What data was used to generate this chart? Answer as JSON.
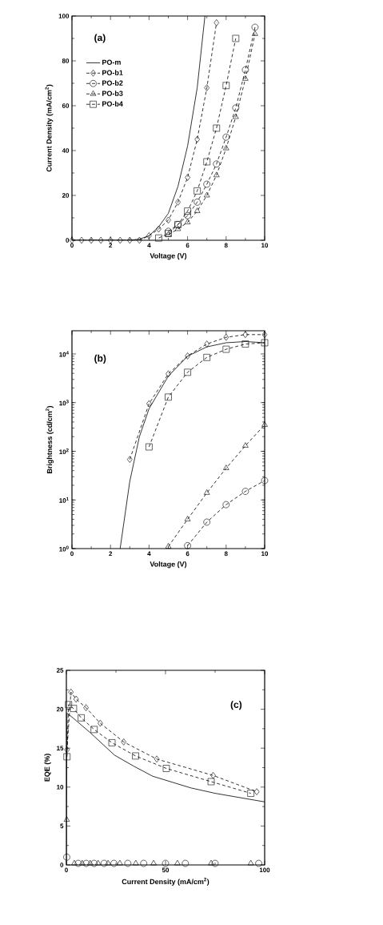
{
  "chart_data": [
    {
      "type": "line",
      "annotations": [
        "(a)"
      ],
      "xlabel": "Voltage (V)",
      "ylabel": "Current Density (mA/cm$^{2}$)",
      "xlim": [
        0,
        10
      ],
      "ylim": [
        0,
        100
      ],
      "xticks": [
        0,
        2,
        4,
        6,
        8,
        10
      ],
      "yticks": [
        0,
        20,
        40,
        60,
        80,
        100
      ],
      "legend": "top left",
      "series": [
        {
          "name": "PO-m",
          "color": "#000000",
          "marker": "none",
          "line_style": "solid",
          "x": [
            0,
            1,
            2,
            3,
            3.5,
            4,
            4.5,
            5,
            5.5,
            6,
            6.5,
            6.9
          ],
          "values": [
            0,
            0,
            0,
            0,
            0.5,
            2,
            6,
            12,
            24,
            42,
            68,
            100
          ]
        },
        {
          "name": "PO-b1",
          "color": "#000000",
          "marker": "diamond",
          "line_style": "dashed",
          "x": [
            0,
            0.5,
            1,
            1.5,
            2,
            2.5,
            3,
            3.5,
            4,
            4.5,
            5,
            5.5,
            6,
            6.5,
            7,
            7.5
          ],
          "values": [
            0,
            0,
            0,
            0,
            0,
            0,
            0,
            0,
            2,
            5,
            9,
            17,
            28,
            45,
            68,
            97
          ]
        },
        {
          "name": "PO-b2",
          "color": "#000000",
          "marker": "circle",
          "line_style": "dashed",
          "x": [
            5,
            5.5,
            6,
            6.5,
            7,
            7.5,
            8,
            8.5,
            9,
            9.5
          ],
          "values": [
            4,
            7,
            11,
            17,
            25,
            34,
            46,
            59,
            76,
            95
          ]
        },
        {
          "name": "PO-b3",
          "color": "#000000",
          "marker": "triangle",
          "line_style": "dashed",
          "x": [
            5,
            5.5,
            6,
            6.5,
            7,
            7.5,
            8,
            8.5,
            9,
            9.5
          ],
          "values": [
            2.5,
            5,
            8,
            13,
            20,
            29,
            41,
            55,
            72,
            92
          ]
        },
        {
          "name": "PO-b4",
          "color": "#000000",
          "marker": "square",
          "line_style": "dashed",
          "x": [
            4.5,
            5,
            5.5,
            6,
            6.5,
            7,
            7.5,
            8,
            8.5
          ],
          "values": [
            1,
            3,
            7,
            13,
            22,
            35,
            50,
            69,
            90
          ]
        }
      ]
    },
    {
      "type": "line",
      "annotations": [
        "(b)"
      ],
      "xlabel": "Voltage (V)",
      "ylabel": "Brightness (cd/cm$^{2}$)",
      "log": "y",
      "xlim": [
        0,
        10
      ],
      "ylim": [
        1,
        30000
      ],
      "xticks": [
        0,
        2,
        4,
        6,
        8,
        10
      ],
      "yticks": [
        {
          "value": 1,
          "label": "10$^{0}$"
        },
        {
          "value": 10,
          "label": "10$^{1}$"
        },
        {
          "value": 100,
          "label": "10$^{2}$"
        },
        {
          "value": 1000,
          "label": "10$^{3}$"
        },
        {
          "value": 10000,
          "label": "10$^{4}$"
        }
      ],
      "series": [
        {
          "color": "#000000",
          "marker": "none",
          "line_style": "solid",
          "x": [
            2.5,
            3,
            3.5,
            4,
            5,
            6,
            7,
            8,
            9,
            10
          ],
          "values": [
            1,
            24,
            200,
            750,
            3500,
            9000,
            14000,
            17000,
            18000,
            17000
          ]
        },
        {
          "color": "#000000",
          "marker": "diamond",
          "line_style": "dashed",
          "x": [
            3,
            4,
            5,
            6,
            7,
            8,
            9,
            10
          ],
          "values": [
            68,
            950,
            3900,
            9100,
            16000,
            22000,
            25000,
            25000
          ]
        },
        {
          "color": "#000000",
          "marker": "circle",
          "line_style": "dashed",
          "x": [
            6,
            7,
            8,
            9,
            10
          ],
          "values": [
            1.15,
            3.5,
            8,
            15,
            25
          ]
        },
        {
          "color": "#000000",
          "marker": "triangle",
          "line_style": "dashed",
          "x": [
            5,
            6,
            7,
            8,
            9,
            10
          ],
          "values": [
            1.1,
            4,
            14,
            45,
            130,
            350
          ]
        },
        {
          "color": "#000000",
          "marker": "square",
          "line_style": "dashed",
          "x": [
            4,
            5,
            6,
            7,
            8,
            9,
            10
          ],
          "values": [
            123,
            1300,
            4200,
            8500,
            12500,
            16000,
            17000
          ]
        }
      ]
    },
    {
      "type": "line",
      "annotations": [
        "(c)"
      ],
      "xlabel": "Current Density (mA/cm$^{2}$)",
      "ylabel": "EQE (%)",
      "xlim": [
        0,
        100
      ],
      "ylim": [
        0,
        25
      ],
      "xticks": [
        0,
        50,
        100
      ],
      "yticks": [
        0,
        5,
        10,
        15,
        20,
        25
      ],
      "series": [
        {
          "color": "#000000",
          "marker": "none",
          "line_style": "solid",
          "x": [
            0,
            0.3,
            3.3,
            12,
            24.3,
            33.9,
            43.5,
            62.7,
            75,
            100
          ],
          "values": [
            0,
            19.5,
            18.9,
            17.0,
            14.1,
            12.7,
            11.4,
            9.9,
            9.2,
            8.1
          ]
        },
        {
          "color": "#000000",
          "marker": "diamond",
          "line_style": "dashed",
          "x": [
            0.3,
            2.3,
            4.9,
            9.9,
            17.1,
            28.9,
            45.6,
            74,
            96
          ],
          "values": [
            14.8,
            22.2,
            21.3,
            20.2,
            18.2,
            15.8,
            13.6,
            11.5,
            9.4
          ]
        },
        {
          "type": "scatter",
          "color": "#000000",
          "marker": "circle",
          "x": [
            0.2,
            6,
            10,
            14,
            19,
            24,
            31,
            39,
            50,
            60,
            75,
            97
          ],
          "values": [
            1.0,
            0.2,
            0.2,
            0.2,
            0.2,
            0.2,
            0.2,
            0.2,
            0.2,
            0.2,
            0.2,
            0.2
          ]
        },
        {
          "type": "scatter",
          "color": "#000000",
          "marker": "triangle",
          "x": [
            0.2,
            4,
            8,
            12,
            16,
            21,
            27,
            35,
            44,
            56,
            73,
            93
          ],
          "values": [
            5.8,
            0.2,
            0.2,
            0.2,
            0.2,
            0.2,
            0.2,
            0.2,
            0.2,
            0.2,
            0.2,
            0.2
          ]
        },
        {
          "color": "#000000",
          "marker": "square",
          "line_style": "dashed",
          "x": [
            0.3,
            1.1,
            3.6,
            7.5,
            14,
            23,
            34.9,
            50.4,
            73,
            93
          ],
          "values": [
            13.9,
            20.6,
            20.1,
            18.9,
            17.4,
            15.7,
            14.0,
            12.4,
            10.7,
            9.2
          ]
        }
      ]
    }
  ]
}
